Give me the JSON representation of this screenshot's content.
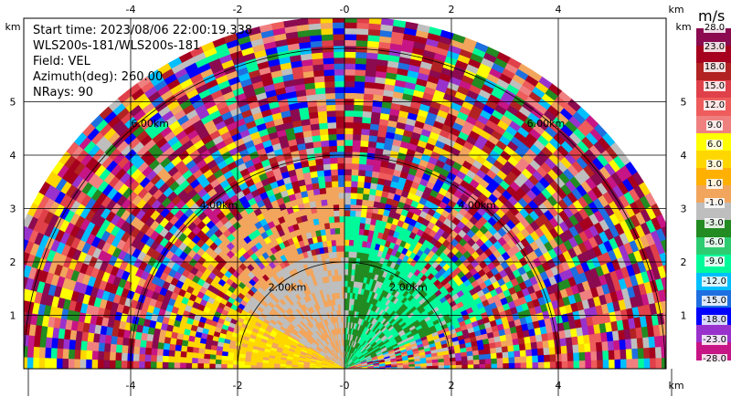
{
  "info": {
    "start_time": "Start time: 2023/08/06 22:00:19.338",
    "station": "WLS200s-181/WLS200s-181",
    "field": "Field: VEL",
    "azimuth": "Azimuth(deg): 260.00",
    "nrays": "NRays: 90"
  },
  "axes": {
    "x_ticks": [
      "-4",
      "-2",
      "-0",
      "2",
      "4"
    ],
    "y_ticks": [
      "1",
      "2",
      "3",
      "4",
      "5"
    ],
    "unit": "km"
  },
  "range_rings": {
    "labels": [
      "2.00km",
      "4.00km",
      "6.00km"
    ]
  },
  "colorbar": {
    "unit": "m/s",
    "ticks": [
      "28.0",
      "23.0",
      "18.0",
      "15.0",
      "12.0",
      "9.0",
      "6.0",
      "3.0",
      "1.0",
      "-1.0",
      "-3.0",
      "-6.0",
      "-9.0",
      "-12.0",
      "-15.0",
      "-18.0",
      "-23.0",
      "-28.0"
    ],
    "colors": [
      "#8b0a50",
      "#a6001e",
      "#b22222",
      "#e0404a",
      "#ee5c5c",
      "#f08080",
      "#ffff00",
      "#ffd700",
      "#ffb000",
      "#f2a55c",
      "#bebebe",
      "#228b22",
      "#2ecc71",
      "#00fa9a",
      "#00bfff",
      "#1e6fe0",
      "#0000ff",
      "#9932cc",
      "#c71585"
    ]
  }
}
